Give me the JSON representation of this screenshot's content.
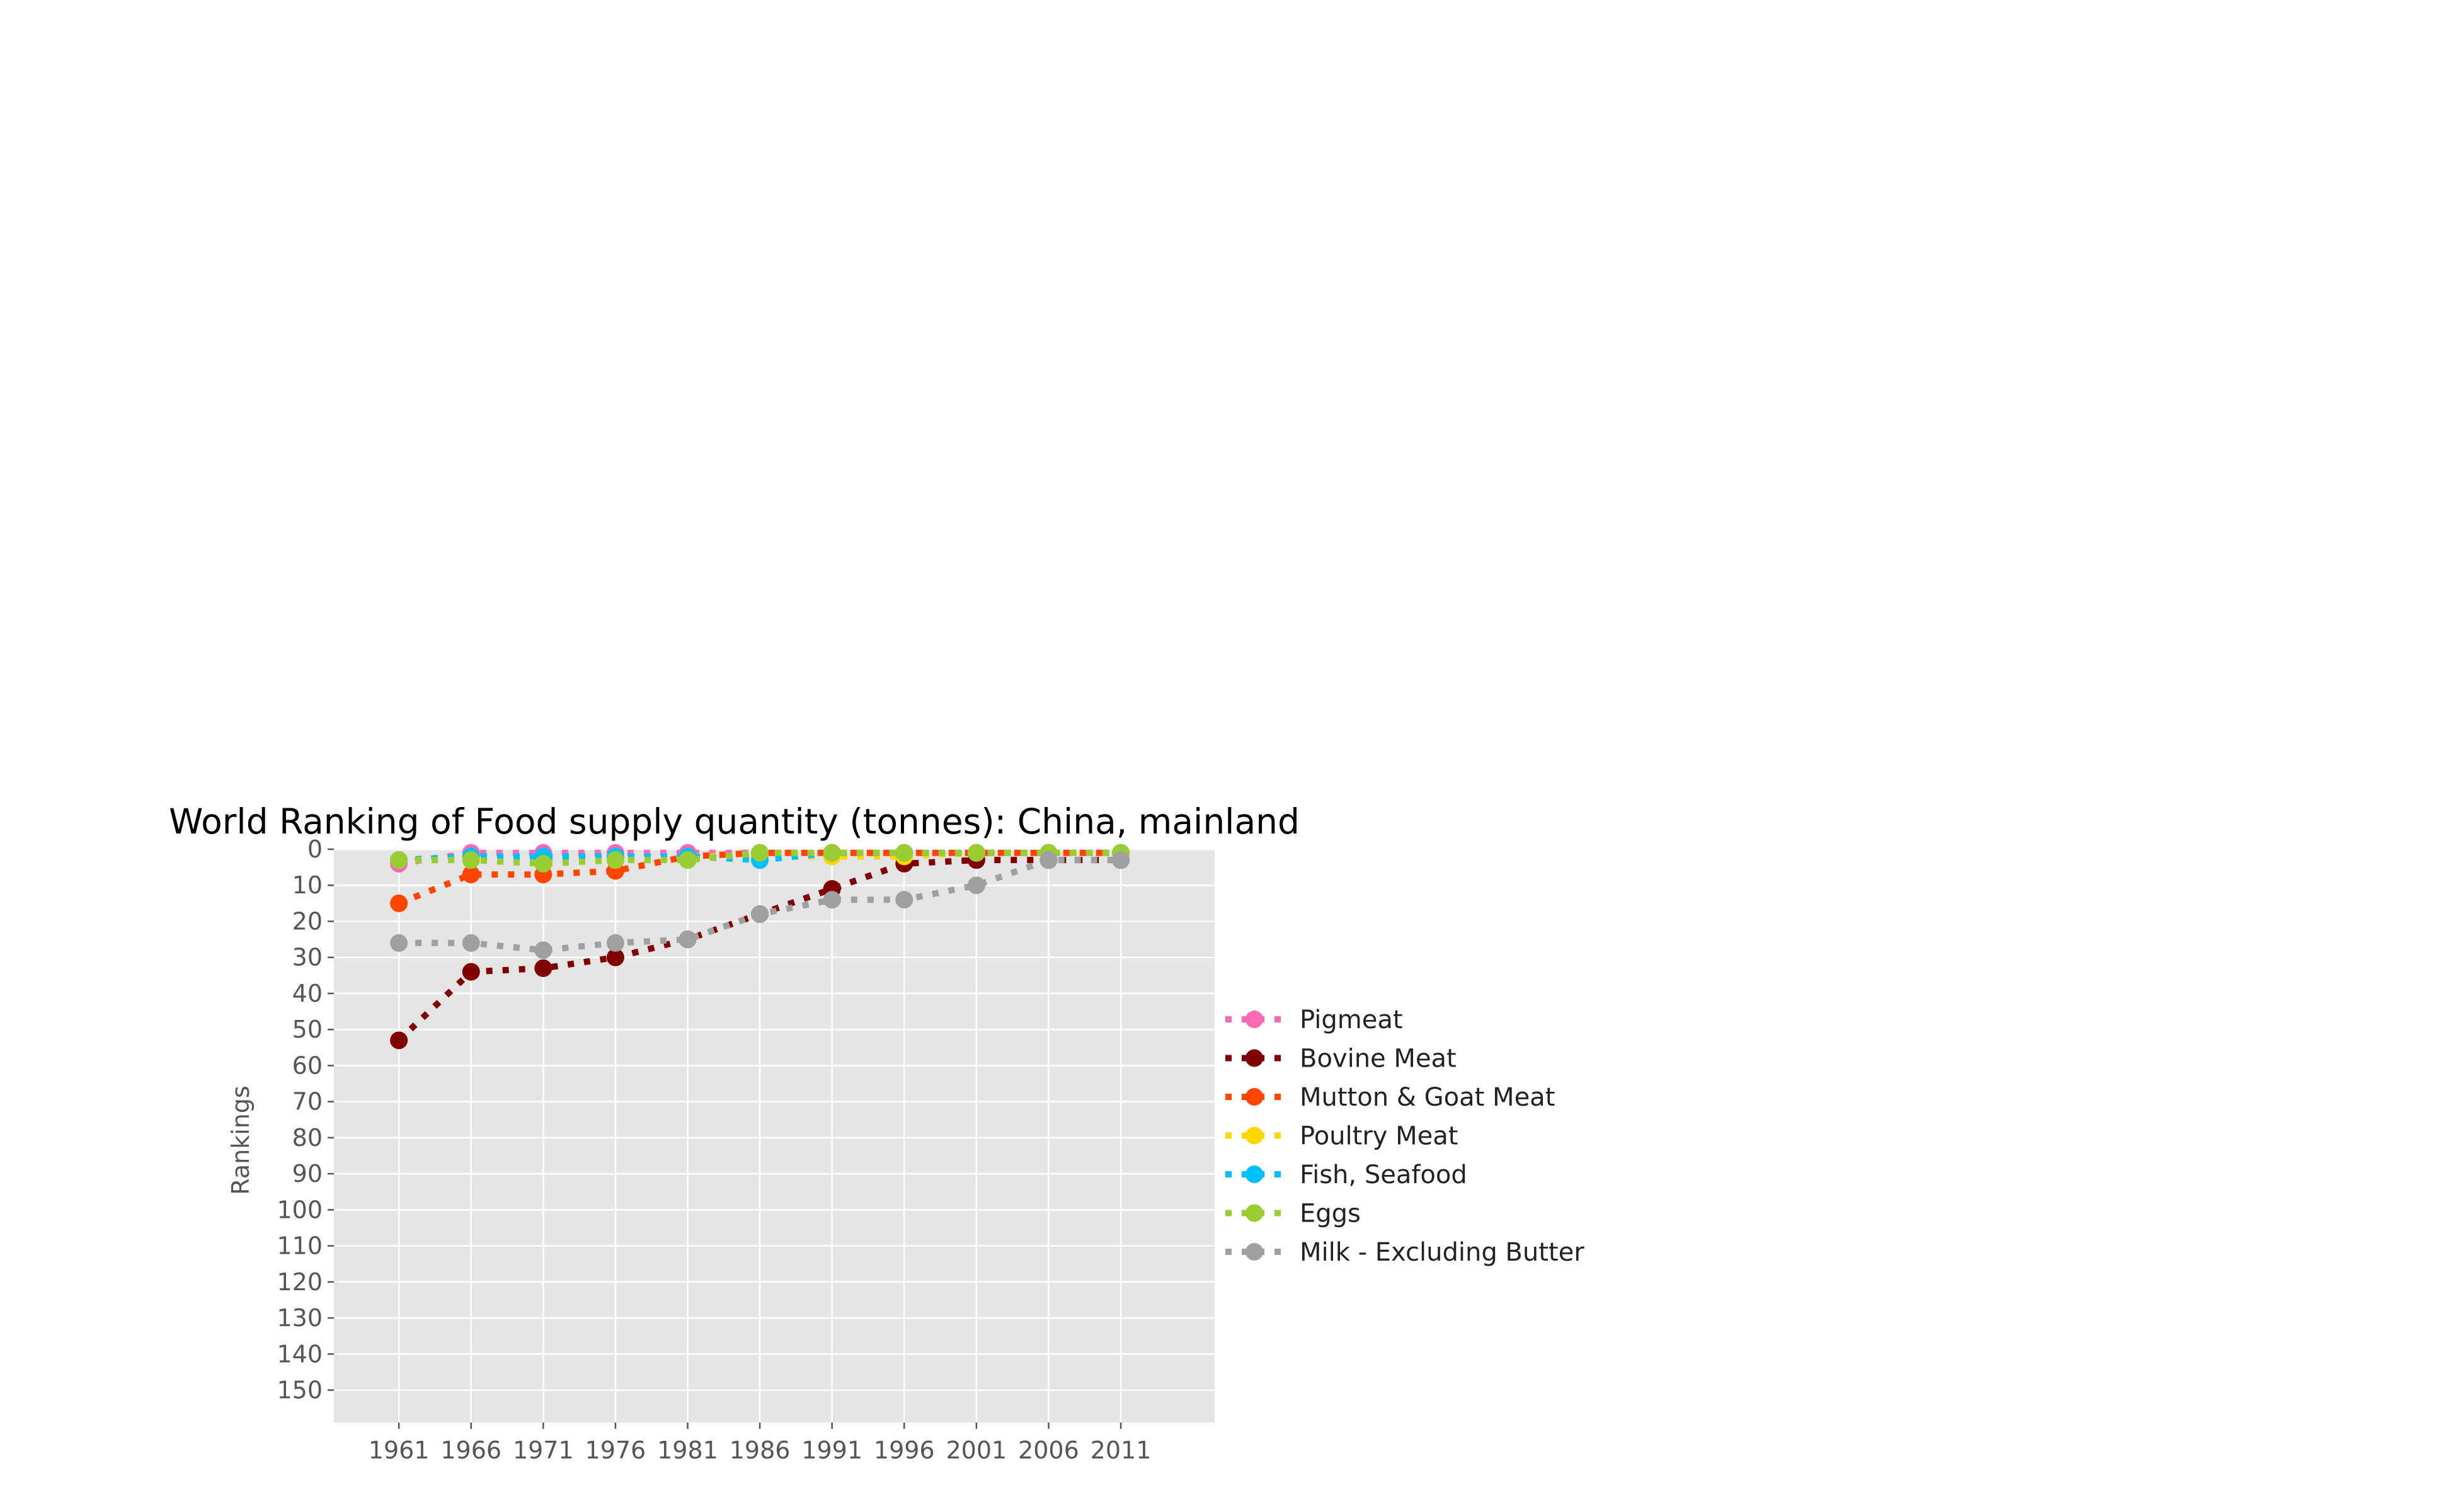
{
  "chart_data": {
    "type": "line",
    "title": "World Ranking of Food supply quantity (tonnes): China, mainland",
    "xlabel": "",
    "ylabel": "Rankings",
    "x": [
      1961,
      1966,
      1971,
      1976,
      1981,
      1986,
      1991,
      1996,
      2001,
      2006,
      2011
    ],
    "x_ticks": [
      "1961",
      "1966",
      "1971",
      "1976",
      "1981",
      "1986",
      "1991",
      "1996",
      "2001",
      "2006",
      "2011"
    ],
    "y_ticks": [
      "0",
      "10",
      "20",
      "30",
      "40",
      "50",
      "60",
      "70",
      "80",
      "90",
      "100",
      "110",
      "120",
      "130",
      "140",
      "150"
    ],
    "ylim": [
      159,
      0
    ],
    "y_inverted": true,
    "grid": true,
    "legend_position": "right",
    "line_style": "dotted",
    "marker": "circle",
    "series": [
      {
        "name": "Pigmeat",
        "color": "#ff69b4",
        "values": [
          4,
          1,
          1,
          1,
          1,
          1,
          1,
          1,
          1,
          1,
          1
        ]
      },
      {
        "name": "Bovine Meat",
        "color": "#800000",
        "values": [
          53,
          34,
          33,
          30,
          25,
          18,
          11,
          4,
          3,
          3,
          3
        ]
      },
      {
        "name": "Mutton & Goat Meat",
        "color": "#ff4500",
        "values": [
          15,
          7,
          7,
          6,
          2,
          1,
          1,
          1,
          1,
          1,
          1
        ]
      },
      {
        "name": "Poultry Meat",
        "color": "#ffd700",
        "values": [
          3,
          3,
          3,
          3,
          2,
          2,
          2,
          2,
          1,
          1,
          1
        ]
      },
      {
        "name": "Fish, Seafood",
        "color": "#00bfff",
        "values": [
          3,
          2,
          2,
          2,
          2,
          3,
          1,
          1,
          1,
          1,
          1
        ]
      },
      {
        "name": "Eggs",
        "color": "#9acd32",
        "values": [
          3,
          3,
          4,
          3,
          3,
          1,
          1,
          1,
          1,
          1,
          1
        ]
      },
      {
        "name": "Milk - Excluding Butter",
        "color": "#a0a0a0",
        "values": [
          26,
          26,
          28,
          26,
          25,
          18,
          14,
          14,
          10,
          3,
          3
        ]
      }
    ]
  }
}
